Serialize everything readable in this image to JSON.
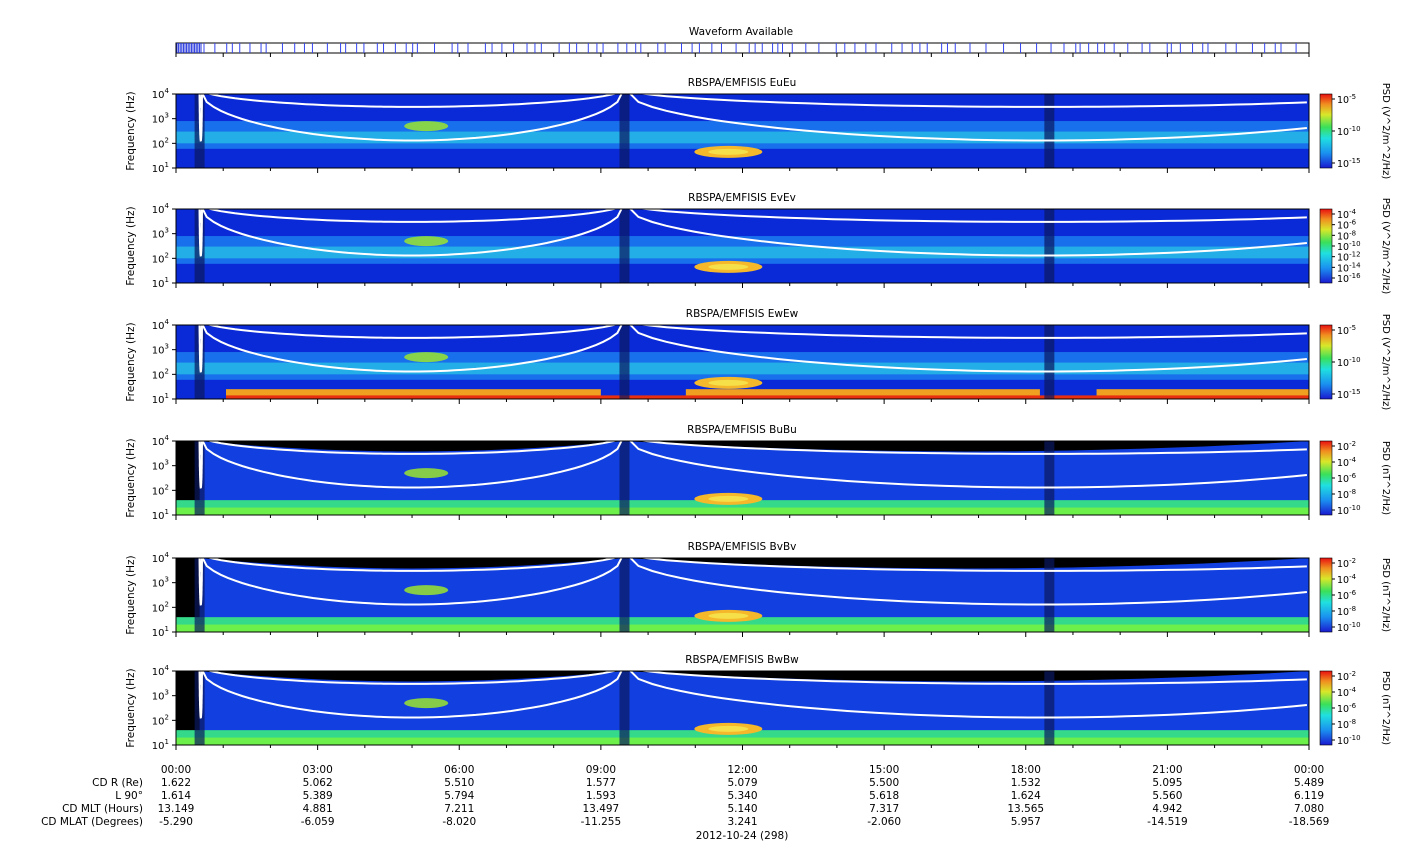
{
  "waveform": {
    "title": "Waveform Available"
  },
  "panels": [
    {
      "title": "RBSPA/EMFISIS  EuEu",
      "ylabel": "Frequency (Hz)",
      "cbar_label": "PSD (V^2/m^2/Hz)",
      "cbar_ticks": [
        "10-5",
        "10-10",
        "10-15"
      ],
      "component": "E",
      "low_band": false
    },
    {
      "title": "RBSPA/EMFISIS  EvEv",
      "ylabel": "Frequency (Hz)",
      "cbar_label": "PSD (V^2/m^2/Hz)",
      "cbar_ticks": [
        "10-4",
        "10-6",
        "10-8",
        "10-10",
        "10-12",
        "10-14",
        "10-16"
      ],
      "component": "E",
      "low_band": false
    },
    {
      "title": "RBSPA/EMFISIS  EwEw",
      "ylabel": "Frequency (Hz)",
      "cbar_label": "PSD (V^2/m^2/Hz)",
      "cbar_ticks": [
        "10-5",
        "10-10",
        "10-15"
      ],
      "component": "E",
      "low_band": true
    },
    {
      "title": "RBSPA/EMFISIS  BuBu",
      "ylabel": "Frequency (Hz)",
      "cbar_label": "PSD (nT^2/Hz)",
      "cbar_ticks": [
        "10-2",
        "10-4",
        "10-6",
        "10-8",
        "10-10"
      ],
      "component": "B",
      "low_band": false
    },
    {
      "title": "RBSPA/EMFISIS  BvBv",
      "ylabel": "Frequency (Hz)",
      "cbar_label": "PSD (nT^2/Hz)",
      "cbar_ticks": [
        "10-2",
        "10-4",
        "10-6",
        "10-8",
        "10-10"
      ],
      "component": "B",
      "low_band": false
    },
    {
      "title": "RBSPA/EMFISIS  BwBw",
      "ylabel": "Frequency (Hz)",
      "cbar_label": "PSD (nT^2/Hz)",
      "cbar_ticks": [
        "10-2",
        "10-4",
        "10-6",
        "10-8",
        "10-10"
      ],
      "component": "B",
      "low_band": false
    }
  ],
  "chart_data": {
    "type": "heatmap",
    "x_label_times": [
      "00:00",
      "03:00",
      "06:00",
      "09:00",
      "12:00",
      "15:00",
      "18:00",
      "21:00",
      "00:00"
    ],
    "x_range_hours": [
      0,
      24
    ],
    "y_ticks": [
      "101",
      "102",
      "103",
      "104"
    ],
    "y_range_hz": [
      10,
      10000
    ],
    "y_scale": "log",
    "perigee_hours": [
      0.5,
      9.5,
      18.5
    ],
    "ephemeris": [
      {
        "name": "CD R (Re)",
        "values": [
          "1.622",
          "5.062",
          "5.510",
          "1.577",
          "5.079",
          "5.500",
          "1.532",
          "5.095",
          "5.489"
        ]
      },
      {
        "name": "L 90°",
        "values": [
          "1.614",
          "5.389",
          "5.794",
          "1.593",
          "5.340",
          "5.618",
          "1.624",
          "5.560",
          "6.119"
        ]
      },
      {
        "name": "CD MLT (Hours)",
        "values": [
          "13.149",
          "4.881",
          "7.211",
          "13.497",
          "5.140",
          "7.317",
          "13.565",
          "4.942",
          "7.080"
        ]
      },
      {
        "name": "CD MLAT (Degrees)",
        "values": [
          "-5.290",
          "-6.059",
          "-8.020",
          "-11.255",
          "3.241",
          "-2.060",
          "5.957",
          "-14.519",
          "-18.569"
        ]
      }
    ],
    "date_label": "2012-10-24 (298)"
  },
  "colors": {
    "background": "#ffffff",
    "panel_fill": "#0a2ad8",
    "curve": "#ffffff",
    "axis": "#000000"
  }
}
